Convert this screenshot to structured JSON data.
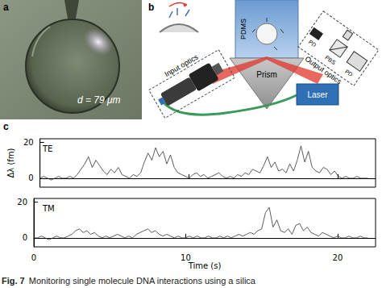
{
  "panels": {
    "a": {
      "label": "a",
      "scale_text": "d = 79 μm"
    },
    "b": {
      "label": "b",
      "pdms": "PDMS",
      "prism": "Prism",
      "input_optics": "Input optics",
      "output_optics": "Output optics",
      "laser": "Laser",
      "detectors": [
        "PD",
        "PBS",
        "PD"
      ]
    },
    "c": {
      "label": "c"
    }
  },
  "chart_data": [
    {
      "type": "line",
      "title": "TE",
      "y_label": "Δλ (fm)",
      "color": "#333333",
      "tick_labels": "y",
      "x": [
        0,
        0.25,
        0.5,
        0.75,
        1,
        1.25,
        1.5,
        1.75,
        2,
        2.25,
        2.5,
        2.75,
        3,
        3.25,
        3.5,
        3.75,
        4,
        4.25,
        4.5,
        4.75,
        5,
        5.25,
        5.5,
        5.75,
        6,
        6.25,
        6.5,
        6.75,
        7,
        7.25,
        7.5,
        7.75,
        8,
        8.25,
        8.5,
        8.75,
        9,
        9.25,
        9.5,
        9.75,
        10,
        10.25,
        10.5,
        10.75,
        11,
        11.25,
        11.5,
        11.75,
        12,
        12.25,
        12.5,
        12.75,
        13,
        13.25,
        13.5,
        13.75,
        14,
        14.25,
        14.5,
        14.75,
        15,
        15.25,
        15.5,
        15.75,
        16,
        16.25,
        16.5,
        16.75,
        17,
        17.25,
        17.5,
        17.75,
        18,
        18.25,
        18.5,
        18.75,
        19,
        19.25,
        19.5,
        19.75,
        20,
        20.25,
        20.5,
        20.75,
        21,
        21.25,
        21.5,
        21.75,
        22
      ],
      "values": [
        0,
        1,
        0,
        -1,
        0,
        1,
        0,
        0,
        1,
        0,
        2,
        5,
        8,
        12,
        6,
        10,
        7,
        4,
        2,
        5,
        3,
        6,
        2,
        1,
        0,
        2,
        1,
        3,
        9,
        14,
        10,
        17,
        12,
        15,
        8,
        13,
        6,
        3,
        2,
        1,
        0,
        2,
        3,
        1,
        2,
        0,
        1,
        2,
        3,
        1,
        0,
        1,
        0,
        2,
        1,
        3,
        2,
        5,
        4,
        3,
        7,
        12,
        6,
        9,
        4,
        5,
        3,
        8,
        4,
        10,
        18,
        9,
        15,
        6,
        4,
        3,
        6,
        5,
        2,
        4,
        1,
        0,
        1,
        0,
        0,
        1,
        0,
        0,
        0
      ],
      "xlim": [
        0,
        22.5
      ],
      "ylim": [
        -5,
        22
      ],
      "xticks": [
        0,
        10,
        20
      ],
      "yticks": [
        0,
        20
      ]
    },
    {
      "type": "line",
      "title": "TM",
      "x_label": "Time (s)",
      "color": "#333333",
      "x": [
        0,
        0.25,
        0.5,
        0.75,
        1,
        1.25,
        1.5,
        1.75,
        2,
        2.25,
        2.5,
        2.75,
        3,
        3.25,
        3.5,
        3.75,
        4,
        4.25,
        4.5,
        4.75,
        5,
        5.25,
        5.5,
        5.75,
        6,
        6.25,
        6.5,
        6.75,
        7,
        7.25,
        7.5,
        7.75,
        8,
        8.25,
        8.5,
        8.75,
        9,
        9.25,
        9.5,
        9.75,
        10,
        10.25,
        10.5,
        10.75,
        11,
        11.25,
        11.5,
        11.75,
        12,
        12.25,
        12.5,
        12.75,
        13,
        13.25,
        13.5,
        13.75,
        14,
        14.25,
        14.5,
        14.75,
        15,
        15.25,
        15.5,
        15.75,
        16,
        16.25,
        16.5,
        16.75,
        17,
        17.25,
        17.5,
        17.75,
        18,
        18.25,
        18.5,
        18.75,
        19,
        19.25,
        19.5,
        19.75,
        20,
        20.25,
        20.5,
        20.75,
        21,
        21.25,
        21.5,
        21.75,
        22
      ],
      "values": [
        0,
        0,
        1,
        0,
        -1,
        0,
        1,
        0,
        0,
        1,
        2,
        4,
        5,
        3,
        4,
        2,
        3,
        1,
        0,
        1,
        0,
        1,
        2,
        1,
        0,
        1,
        0,
        2,
        3,
        4,
        5,
        3,
        4,
        2,
        1,
        2,
        1,
        0,
        1,
        0,
        0,
        1,
        0,
        1,
        0,
        0,
        1,
        0,
        0,
        1,
        0,
        1,
        0,
        1,
        2,
        1,
        2,
        3,
        2,
        4,
        5,
        14,
        17,
        6,
        10,
        4,
        3,
        5,
        2,
        7,
        8,
        4,
        6,
        3,
        2,
        1,
        3,
        2,
        1,
        0,
        1,
        0,
        0,
        1,
        0,
        0,
        1,
        0,
        0
      ],
      "xlim": [
        0,
        22.5
      ],
      "ylim": [
        -5,
        22
      ],
      "xticks": [
        0,
        10,
        20
      ],
      "yticks": [
        0,
        20
      ]
    }
  ],
  "caption": {
    "label": "Fig. 7",
    "text": "Monitoring single molecule DNA interactions using a silica"
  }
}
